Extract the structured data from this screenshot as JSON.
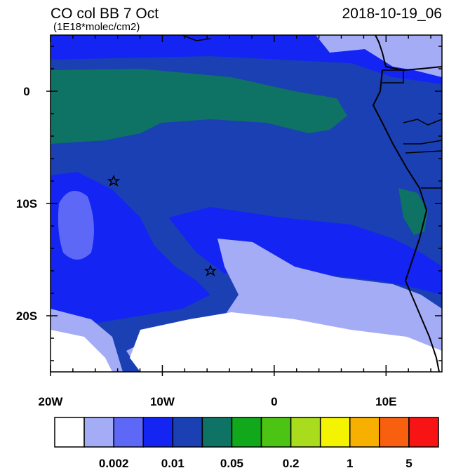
{
  "map": {
    "title": "CO col BB 7 Oct",
    "subtitle": "(1E18*molec/cm2)",
    "timestamp": "2018-10-19_06",
    "xlim": [
      -20,
      15
    ],
    "ylim": [
      -25,
      5
    ],
    "xticks": [
      {
        "value": -20,
        "label": "20W"
      },
      {
        "value": -10,
        "label": "10W"
      },
      0,
      {
        "value": 10,
        "label": "10E"
      }
    ],
    "yticks": [
      0,
      {
        "value": -10,
        "label": "10S"
      },
      {
        "value": -20,
        "label": "20S"
      }
    ],
    "colorbar": {
      "colors": [
        "#ffffff",
        "#a4acf6",
        "#5d68f6",
        "#1424f2",
        "#1a40b4",
        "#0e7264",
        "#12a81c",
        "#4cc414",
        "#a8dc1c",
        "#f4f400",
        "#f8b000",
        "#f86010",
        "#f81414"
      ],
      "ticks": [
        0.002,
        0.01,
        0.05,
        0.2,
        1,
        5
      ]
    }
  }
}
